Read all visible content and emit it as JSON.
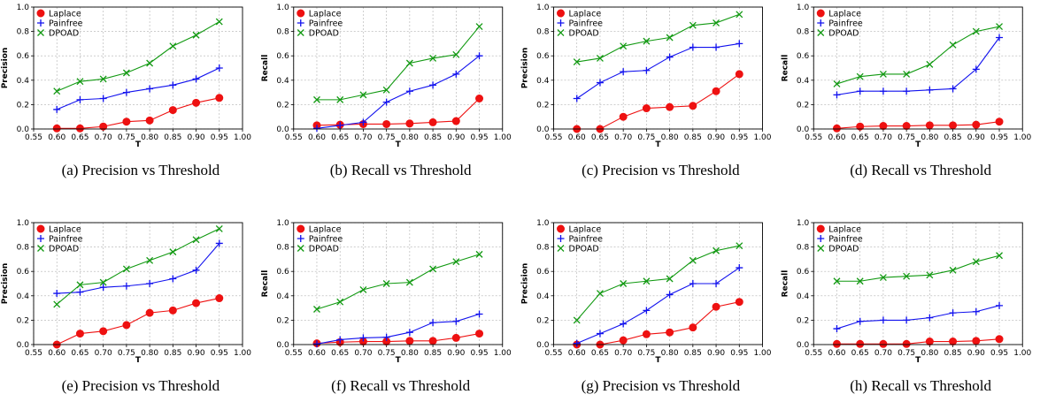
{
  "figure": {
    "panels_per_row": 4,
    "series_styles": [
      {
        "name": "Laplace",
        "color": "#ee1111",
        "marker": "circle"
      },
      {
        "name": "Painfree",
        "color": "#1111ee",
        "marker": "plus"
      },
      {
        "name": "DPOAD",
        "color": "#119911",
        "marker": "x"
      }
    ]
  },
  "chart_data": [
    {
      "type": "line",
      "caption": "(a) Precision vs Threshold",
      "xlabel": "T",
      "ylabel": "Precision",
      "xlim": [
        0.55,
        1.0
      ],
      "ylim": [
        0.0,
        1.0
      ],
      "xticks": [
        "0.55",
        "0.60",
        "0.65",
        "0.70",
        "0.75",
        "0.80",
        "0.85",
        "0.90",
        "0.95",
        "1.00"
      ],
      "yticks": [
        "0.0",
        "0.2",
        "0.4",
        "0.6",
        "0.8",
        "1.0"
      ],
      "legend": "top-left",
      "grid": true,
      "x": [
        0.6,
        0.65,
        0.7,
        0.75,
        0.8,
        0.85,
        0.9,
        0.95
      ],
      "series": [
        {
          "name": "Laplace",
          "values": [
            0.005,
            0.005,
            0.02,
            0.06,
            0.07,
            0.155,
            0.215,
            0.255
          ]
        },
        {
          "name": "Painfree",
          "values": [
            0.16,
            0.24,
            0.25,
            0.3,
            0.33,
            0.36,
            0.41,
            0.5
          ]
        },
        {
          "name": "DPOAD",
          "values": [
            0.31,
            0.39,
            0.41,
            0.46,
            0.54,
            0.68,
            0.77,
            0.88
          ]
        }
      ]
    },
    {
      "type": "line",
      "caption": "(b) Recall vs Threshold",
      "xlabel": "T",
      "ylabel": "Recall",
      "xlim": [
        0.55,
        1.0
      ],
      "ylim": [
        0.0,
        1.0
      ],
      "xticks": [
        "0.55",
        "0.60",
        "0.65",
        "0.70",
        "0.75",
        "0.80",
        "0.85",
        "0.90",
        "0.95",
        "1.00"
      ],
      "yticks": [
        "0.0",
        "0.2",
        "0.4",
        "0.6",
        "0.8",
        "1.0"
      ],
      "legend": "top-left",
      "grid": true,
      "x": [
        0.6,
        0.65,
        0.7,
        0.75,
        0.8,
        0.85,
        0.9,
        0.95
      ],
      "series": [
        {
          "name": "Laplace",
          "values": [
            0.03,
            0.035,
            0.04,
            0.04,
            0.045,
            0.055,
            0.065,
            0.25
          ]
        },
        {
          "name": "Painfree",
          "values": [
            0.005,
            0.03,
            0.055,
            0.22,
            0.31,
            0.36,
            0.45,
            0.6
          ]
        },
        {
          "name": "DPOAD",
          "values": [
            0.24,
            0.24,
            0.28,
            0.32,
            0.54,
            0.58,
            0.61,
            0.84
          ]
        }
      ]
    },
    {
      "type": "line",
      "caption": "(c) Precision vs Threshold",
      "xlabel": "T",
      "ylabel": "Precision",
      "xlim": [
        0.55,
        1.0
      ],
      "ylim": [
        0.0,
        1.0
      ],
      "xticks": [
        "0.55",
        "0.60",
        "0.65",
        "0.70",
        "0.75",
        "0.80",
        "0.85",
        "0.90",
        "0.95",
        "1.00"
      ],
      "yticks": [
        "0.0",
        "0.2",
        "0.4",
        "0.6",
        "0.8",
        "1.0"
      ],
      "legend": "top-left",
      "grid": true,
      "x": [
        0.6,
        0.65,
        0.7,
        0.75,
        0.8,
        0.85,
        0.9,
        0.95
      ],
      "series": [
        {
          "name": "Laplace",
          "values": [
            0.0,
            0.0,
            0.1,
            0.17,
            0.18,
            0.19,
            0.31,
            0.45
          ]
        },
        {
          "name": "Painfree",
          "values": [
            0.25,
            0.38,
            0.47,
            0.48,
            0.59,
            0.67,
            0.67,
            0.7
          ]
        },
        {
          "name": "DPOAD",
          "values": [
            0.55,
            0.58,
            0.68,
            0.72,
            0.75,
            0.85,
            0.87,
            0.94
          ]
        }
      ]
    },
    {
      "type": "line",
      "caption": "(d) Recall vs Threshold",
      "xlabel": "T",
      "ylabel": "Recall",
      "xlim": [
        0.55,
        1.0
      ],
      "ylim": [
        0.0,
        1.0
      ],
      "xticks": [
        "0.55",
        "0.60",
        "0.65",
        "0.70",
        "0.75",
        "0.80",
        "0.85",
        "0.90",
        "0.95",
        "1.00"
      ],
      "yticks": [
        "0.0",
        "0.2",
        "0.4",
        "0.6",
        "0.8",
        "1.0"
      ],
      "legend": "top-left",
      "grid": true,
      "x": [
        0.6,
        0.65,
        0.7,
        0.75,
        0.8,
        0.85,
        0.9,
        0.95
      ],
      "series": [
        {
          "name": "Laplace",
          "values": [
            0.005,
            0.02,
            0.025,
            0.025,
            0.03,
            0.03,
            0.035,
            0.06
          ]
        },
        {
          "name": "Painfree",
          "values": [
            0.28,
            0.31,
            0.31,
            0.31,
            0.32,
            0.33,
            0.49,
            0.75
          ]
        },
        {
          "name": "DPOAD",
          "values": [
            0.37,
            0.43,
            0.45,
            0.45,
            0.53,
            0.69,
            0.8,
            0.84
          ]
        }
      ]
    },
    {
      "type": "line",
      "caption": "(e) Precision vs Threshold",
      "xlabel": "T",
      "ylabel": "Precision",
      "xlim": [
        0.55,
        1.0
      ],
      "ylim": [
        0.0,
        1.0
      ],
      "xticks": [
        "0.55",
        "0.60",
        "0.65",
        "0.70",
        "0.75",
        "0.80",
        "0.85",
        "0.90",
        "0.95",
        "1.00"
      ],
      "yticks": [
        "0.0",
        "0.2",
        "0.4",
        "0.6",
        "0.8",
        "1.0"
      ],
      "legend": "top-left",
      "grid": true,
      "x": [
        0.6,
        0.65,
        0.7,
        0.75,
        0.8,
        0.85,
        0.9,
        0.95
      ],
      "series": [
        {
          "name": "Laplace",
          "values": [
            0.0,
            0.09,
            0.11,
            0.16,
            0.26,
            0.28,
            0.34,
            0.38
          ]
        },
        {
          "name": "Painfree",
          "values": [
            0.42,
            0.43,
            0.47,
            0.48,
            0.5,
            0.54,
            0.61,
            0.83
          ]
        },
        {
          "name": "DPOAD",
          "values": [
            0.33,
            0.49,
            0.51,
            0.62,
            0.69,
            0.76,
            0.86,
            0.95
          ]
        }
      ]
    },
    {
      "type": "line",
      "caption": "(f) Recall vs Threshold",
      "xlabel": "T",
      "ylabel": "Recall",
      "xlim": [
        0.55,
        1.0
      ],
      "ylim": [
        0.0,
        1.0
      ],
      "xticks": [
        "0.55",
        "0.60",
        "0.65",
        "0.70",
        "0.75",
        "0.80",
        "0.85",
        "0.90",
        "0.95",
        "1.00"
      ],
      "yticks": [
        "0.0",
        "0.2",
        "0.4",
        "0.6",
        "0.8",
        "1.0"
      ],
      "legend": "top-left",
      "grid": true,
      "x": [
        0.6,
        0.65,
        0.7,
        0.75,
        0.8,
        0.85,
        0.9,
        0.95
      ],
      "series": [
        {
          "name": "Laplace",
          "values": [
            0.01,
            0.02,
            0.025,
            0.025,
            0.03,
            0.03,
            0.055,
            0.09
          ]
        },
        {
          "name": "Painfree",
          "values": [
            0.005,
            0.04,
            0.055,
            0.06,
            0.1,
            0.18,
            0.19,
            0.25
          ]
        },
        {
          "name": "DPOAD",
          "values": [
            0.29,
            0.35,
            0.45,
            0.5,
            0.51,
            0.62,
            0.68,
            0.74
          ]
        }
      ]
    },
    {
      "type": "line",
      "caption": "(g) Precision vs Threshold",
      "xlabel": "T",
      "ylabel": "Precision",
      "xlim": [
        0.55,
        1.0
      ],
      "ylim": [
        0.0,
        1.0
      ],
      "xticks": [
        "0.55",
        "0.60",
        "0.65",
        "0.70",
        "0.75",
        "0.80",
        "0.85",
        "0.90",
        "0.95",
        "1.00"
      ],
      "yticks": [
        "0.0",
        "0.2",
        "0.4",
        "0.6",
        "0.8",
        "1.0"
      ],
      "legend": "top-left",
      "grid": true,
      "x": [
        0.6,
        0.65,
        0.7,
        0.75,
        0.8,
        0.85,
        0.9,
        0.95
      ],
      "series": [
        {
          "name": "Laplace",
          "values": [
            0.0,
            0.0,
            0.035,
            0.085,
            0.1,
            0.14,
            0.31,
            0.35
          ]
        },
        {
          "name": "Painfree",
          "values": [
            0.01,
            0.09,
            0.17,
            0.28,
            0.41,
            0.5,
            0.5,
            0.63
          ]
        },
        {
          "name": "DPOAD",
          "values": [
            0.2,
            0.42,
            0.5,
            0.52,
            0.54,
            0.69,
            0.77,
            0.81
          ]
        }
      ]
    },
    {
      "type": "line",
      "caption": "(h) Recall vs Threshold",
      "xlabel": "T",
      "ylabel": "Recall",
      "xlim": [
        0.55,
        1.0
      ],
      "ylim": [
        0.0,
        1.0
      ],
      "xticks": [
        "0.55",
        "0.60",
        "0.65",
        "0.70",
        "0.75",
        "0.80",
        "0.85",
        "0.90",
        "0.95",
        "1.00"
      ],
      "yticks": [
        "0.0",
        "0.2",
        "0.4",
        "0.6",
        "0.8",
        "1.0"
      ],
      "legend": "top-left",
      "grid": true,
      "x": [
        0.6,
        0.65,
        0.7,
        0.75,
        0.8,
        0.85,
        0.9,
        0.95
      ],
      "series": [
        {
          "name": "Laplace",
          "values": [
            0.005,
            0.005,
            0.005,
            0.005,
            0.025,
            0.025,
            0.03,
            0.045
          ]
        },
        {
          "name": "Painfree",
          "values": [
            0.13,
            0.19,
            0.2,
            0.2,
            0.22,
            0.26,
            0.27,
            0.32
          ]
        },
        {
          "name": "DPOAD",
          "values": [
            0.52,
            0.52,
            0.55,
            0.56,
            0.57,
            0.61,
            0.68,
            0.73
          ]
        }
      ]
    }
  ]
}
